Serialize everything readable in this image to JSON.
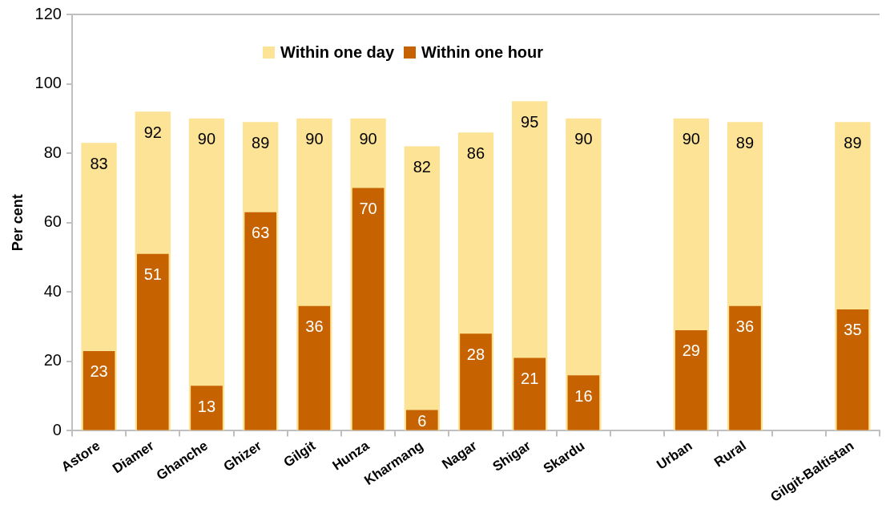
{
  "chart_data": {
    "type": "bar",
    "ylabel": "Per cent",
    "categories": [
      "Astore",
      "Diamer",
      "Ghanche",
      "Ghizer",
      "Gilgit",
      "Hunza",
      "Kharmang",
      "Nagar",
      "Shigar",
      "Skardu",
      null,
      "Urban",
      "Rural",
      null,
      "Gilgit-Baltistan"
    ],
    "series": [
      {
        "name": "Within one day",
        "color": "#fde396",
        "values": [
          83,
          92,
          90,
          89,
          90,
          90,
          82,
          86,
          95,
          90,
          null,
          90,
          89,
          null,
          89
        ]
      },
      {
        "name": "Within one hour",
        "color": "#c66300",
        "values": [
          23,
          51,
          13,
          63,
          36,
          70,
          6,
          28,
          21,
          16,
          null,
          29,
          36,
          null,
          35
        ]
      }
    ],
    "ylim": [
      0,
      120
    ],
    "yticks": [
      0,
      20,
      40,
      60,
      80,
      100,
      120
    ],
    "data_labels": true,
    "legend": "top"
  }
}
